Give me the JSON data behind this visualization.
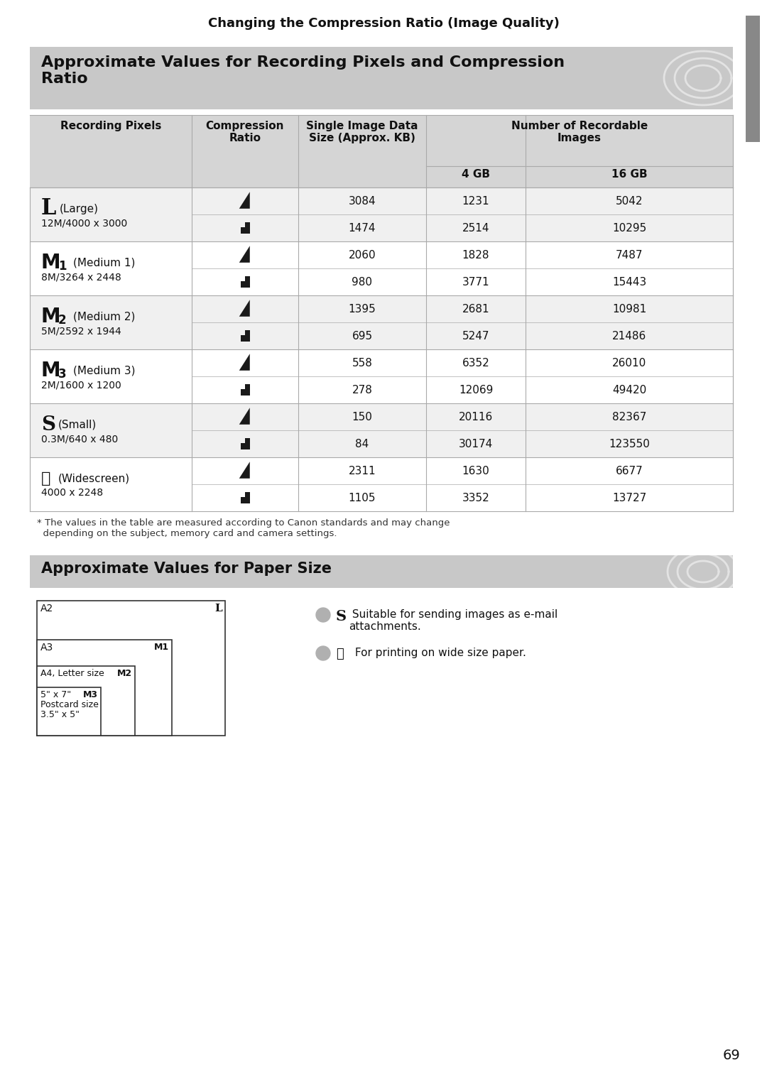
{
  "page_bg": "#ffffff",
  "top_header_text": "Changing the Compression Ratio (Image Quality)",
  "section1_title": "Approximate Values for Recording Pixels and Compression\nRatio",
  "section2_title": "Approximate Values for Paper Size",
  "rows": [
    {
      "pixel_label": "L",
      "pixel_label2": "",
      "pixel_sub": "(Large)",
      "pixel_desc": "12M/4000 x 3000",
      "size": "3084",
      "gb4": "1231",
      "gb16": "5042"
    },
    {
      "pixel_label": "",
      "pixel_label2": "",
      "pixel_sub": "",
      "pixel_desc": "",
      "size": "1474",
      "gb4": "2514",
      "gb16": "10295"
    },
    {
      "pixel_label": "M",
      "pixel_label2": "1",
      "pixel_sub": "(Medium 1)",
      "pixel_desc": "8M/3264 x 2448",
      "size": "2060",
      "gb4": "1828",
      "gb16": "7487"
    },
    {
      "pixel_label": "",
      "pixel_label2": "",
      "pixel_sub": "",
      "pixel_desc": "",
      "size": "980",
      "gb4": "3771",
      "gb16": "15443"
    },
    {
      "pixel_label": "M",
      "pixel_label2": "2",
      "pixel_sub": "(Medium 2)",
      "pixel_desc": "5M/2592 x 1944",
      "size": "1395",
      "gb4": "2681",
      "gb16": "10981"
    },
    {
      "pixel_label": "",
      "pixel_label2": "",
      "pixel_sub": "",
      "pixel_desc": "",
      "size": "695",
      "gb4": "5247",
      "gb16": "21486"
    },
    {
      "pixel_label": "M",
      "pixel_label2": "3",
      "pixel_sub": "(Medium 3)",
      "pixel_desc": "2M/1600 x 1200",
      "size": "558",
      "gb4": "6352",
      "gb16": "26010"
    },
    {
      "pixel_label": "",
      "pixel_label2": "",
      "pixel_sub": "",
      "pixel_desc": "",
      "size": "278",
      "gb4": "12069",
      "gb16": "49420"
    },
    {
      "pixel_label": "S",
      "pixel_label2": "",
      "pixel_sub": "(Small)",
      "pixel_desc": "0.3M/640 x 480",
      "size": "150",
      "gb4": "20116",
      "gb16": "82367"
    },
    {
      "pixel_label": "",
      "pixel_label2": "",
      "pixel_sub": "",
      "pixel_desc": "",
      "size": "84",
      "gb4": "30174",
      "gb16": "123550"
    },
    {
      "pixel_label": "W",
      "pixel_label2": "",
      "pixel_sub": "(Widescreen)",
      "pixel_desc": "4000 x 2248",
      "size": "2311",
      "gb4": "1630",
      "gb16": "6677"
    },
    {
      "pixel_label": "",
      "pixel_label2": "",
      "pixel_sub": "",
      "pixel_desc": "",
      "size": "1105",
      "gb4": "3352",
      "gb16": "13727"
    }
  ],
  "footnote": "* The values in the table are measured according to Canon standards and may change\n  depending on the subject, memory card and camera settings.",
  "note1_text": "Suitable for sending images as e-mail\nattachments.",
  "note2_text": "For printing on wide size paper.",
  "page_number": "69",
  "header_bg": "#c8c8c8",
  "subheader_bg": "#d5d5d5",
  "row_bg_even": "#f0f0f0",
  "row_bg_odd": "#ffffff",
  "sidebar_color": "#888888",
  "border_color": "#aaaaaa",
  "text_color": "#111111"
}
